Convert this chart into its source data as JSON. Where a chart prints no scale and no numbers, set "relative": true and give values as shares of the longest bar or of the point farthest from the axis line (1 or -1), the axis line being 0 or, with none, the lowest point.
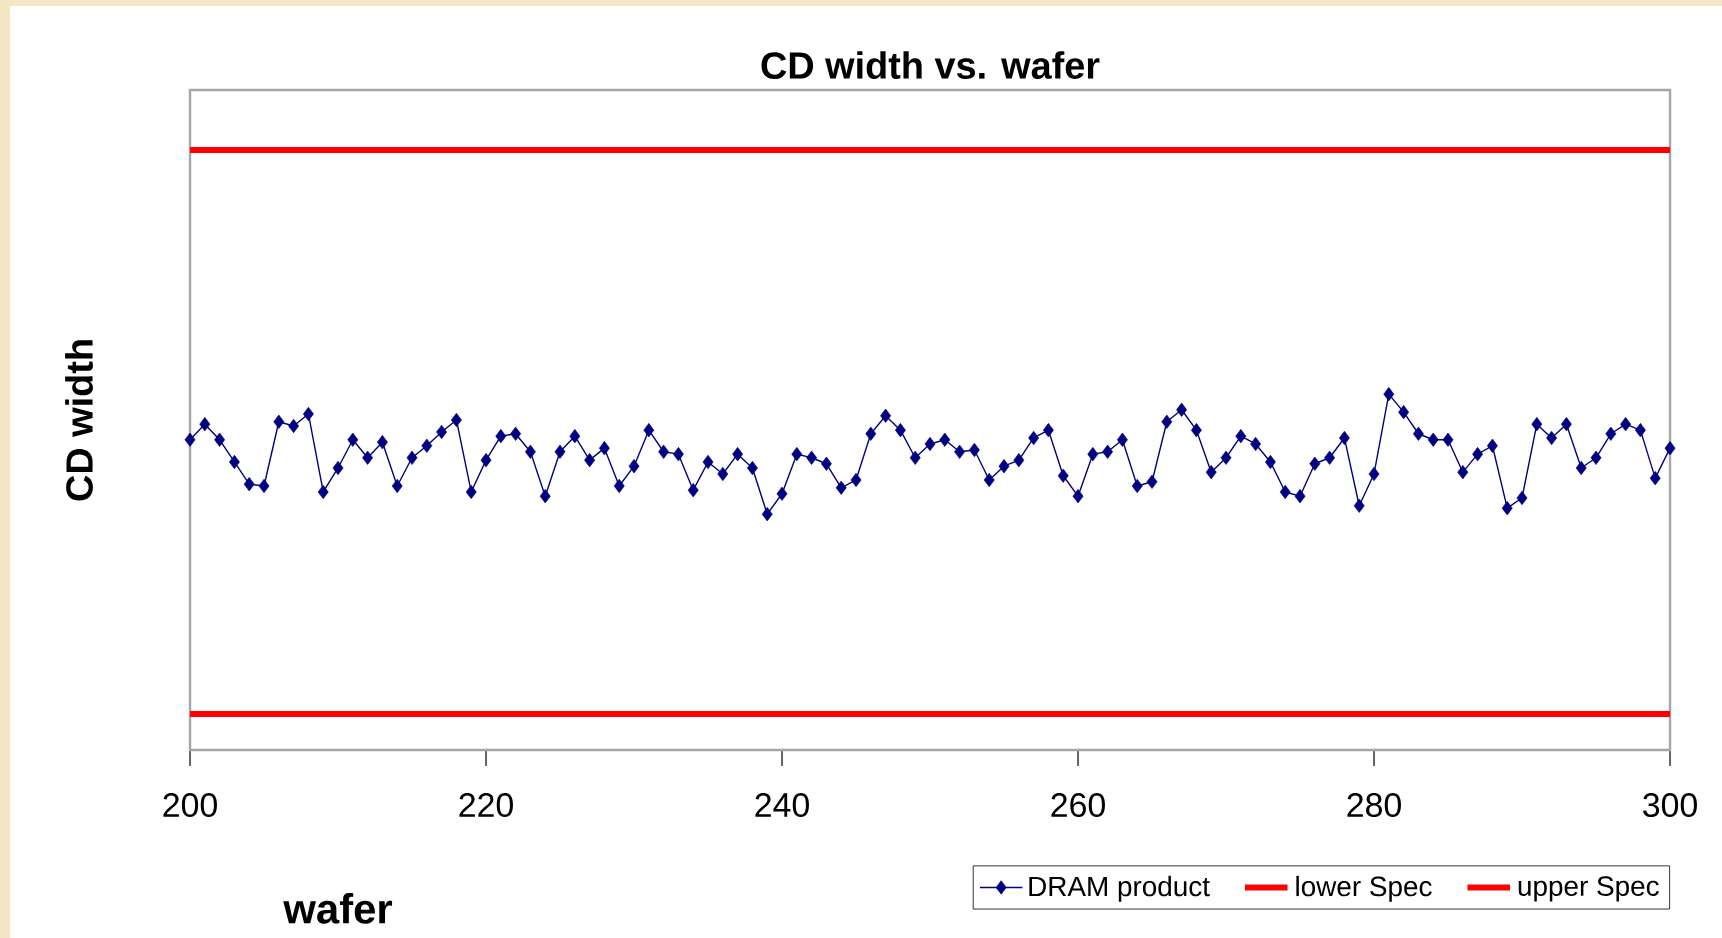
{
  "chart_data": {
    "type": "line",
    "title": "CD width vs. wafer",
    "xlabel": "wafer",
    "ylabel": "CD width",
    "relative": true,
    "marker": "diamond",
    "line_style": "solid",
    "legend": "bottom right",
    "grid": false,
    "tick_labels": "x",
    "xlim": [
      200,
      300
    ],
    "xticks": [
      200,
      220,
      240,
      260,
      280,
      300
    ],
    "x": [
      200,
      201,
      202,
      203,
      204,
      205,
      206,
      207,
      208,
      209,
      210,
      211,
      212,
      213,
      214,
      215,
      216,
      217,
      218,
      219,
      220,
      221,
      222,
      223,
      224,
      225,
      226,
      227,
      228,
      229,
      230,
      231,
      232,
      233,
      234,
      235,
      236,
      237,
      238,
      239,
      240,
      241,
      242,
      243,
      244,
      245,
      246,
      247,
      248,
      249,
      250,
      251,
      252,
      253,
      254,
      255,
      256,
      257,
      258,
      259,
      260,
      261,
      262,
      263,
      264,
      265,
      266,
      267,
      268,
      269,
      270,
      271,
      272,
      273,
      274,
      275,
      276,
      277,
      278,
      279,
      280,
      281,
      282,
      283,
      284,
      285,
      286,
      287,
      288,
      289,
      290,
      291,
      292,
      293,
      294,
      295,
      296,
      297,
      298,
      299,
      300
    ],
    "series": [
      {
        "name": "DRAM product",
        "color": "#000080",
        "values": [
          0.517,
          0.543,
          0.517,
          0.48,
          0.443,
          0.44,
          0.547,
          0.54,
          0.56,
          0.43,
          0.47,
          0.517,
          0.487,
          0.513,
          0.44,
          0.487,
          0.507,
          0.53,
          0.55,
          0.43,
          0.483,
          0.523,
          0.527,
          0.497,
          0.423,
          0.497,
          0.523,
          0.483,
          0.503,
          0.44,
          0.473,
          0.533,
          0.497,
          0.493,
          0.433,
          0.48,
          0.46,
          0.493,
          0.47,
          0.393,
          0.427,
          0.493,
          0.487,
          0.477,
          0.437,
          0.45,
          0.527,
          0.557,
          0.533,
          0.487,
          0.51,
          0.517,
          0.497,
          0.5,
          0.45,
          0.473,
          0.483,
          0.52,
          0.533,
          0.457,
          0.423,
          0.493,
          0.497,
          0.517,
          0.44,
          0.447,
          0.547,
          0.567,
          0.533,
          0.463,
          0.487,
          0.523,
          0.51,
          0.48,
          0.43,
          0.423,
          0.477,
          0.487,
          0.52,
          0.407,
          0.46,
          0.593,
          0.563,
          0.527,
          0.517,
          0.517,
          0.463,
          0.493,
          0.507,
          0.403,
          0.42,
          0.543,
          0.52,
          0.543,
          0.47,
          0.487,
          0.527,
          0.543,
          0.533,
          0.453,
          0.503
        ]
      },
      {
        "name": "lower Spec",
        "color": "#ff0000",
        "marker": "none",
        "values": [
          0.06,
          0.06,
          0.06,
          0.06,
          0.06,
          0.06,
          0.06,
          0.06,
          0.06,
          0.06,
          0.06,
          0.06,
          0.06,
          0.06,
          0.06,
          0.06,
          0.06,
          0.06,
          0.06,
          0.06,
          0.06,
          0.06,
          0.06,
          0.06,
          0.06,
          0.06,
          0.06,
          0.06,
          0.06,
          0.06,
          0.06,
          0.06,
          0.06,
          0.06,
          0.06,
          0.06,
          0.06,
          0.06,
          0.06,
          0.06,
          0.06,
          0.06,
          0.06,
          0.06,
          0.06,
          0.06,
          0.06,
          0.06,
          0.06,
          0.06,
          0.06,
          0.06,
          0.06,
          0.06,
          0.06,
          0.06,
          0.06,
          0.06,
          0.06,
          0.06,
          0.06,
          0.06,
          0.06,
          0.06,
          0.06,
          0.06,
          0.06,
          0.06,
          0.06,
          0.06,
          0.06,
          0.06,
          0.06,
          0.06,
          0.06,
          0.06,
          0.06,
          0.06,
          0.06,
          0.06,
          0.06,
          0.06,
          0.06,
          0.06,
          0.06,
          0.06,
          0.06,
          0.06,
          0.06,
          0.06,
          0.06,
          0.06,
          0.06,
          0.06,
          0.06,
          0.06,
          0.06,
          0.06,
          0.06,
          0.06,
          0.06
        ]
      },
      {
        "name": "upper Spec",
        "color": "#ff0000",
        "marker": "none",
        "values": [
          1,
          1,
          1,
          1,
          1,
          1,
          1,
          1,
          1,
          1,
          1,
          1,
          1,
          1,
          1,
          1,
          1,
          1,
          1,
          1,
          1,
          1,
          1,
          1,
          1,
          1,
          1,
          1,
          1,
          1,
          1,
          1,
          1,
          1,
          1,
          1,
          1,
          1,
          1,
          1,
          1,
          1,
          1,
          1,
          1,
          1,
          1,
          1,
          1,
          1,
          1,
          1,
          1,
          1,
          1,
          1,
          1,
          1,
          1,
          1,
          1,
          1,
          1,
          1,
          1,
          1,
          1,
          1,
          1,
          1,
          1,
          1,
          1,
          1,
          1,
          1,
          1,
          1,
          1,
          1,
          1,
          1,
          1,
          1,
          1,
          1,
          1,
          1,
          1,
          1,
          1,
          1,
          1,
          1,
          1,
          1,
          1,
          1,
          1,
          1,
          1
        ]
      }
    ]
  }
}
